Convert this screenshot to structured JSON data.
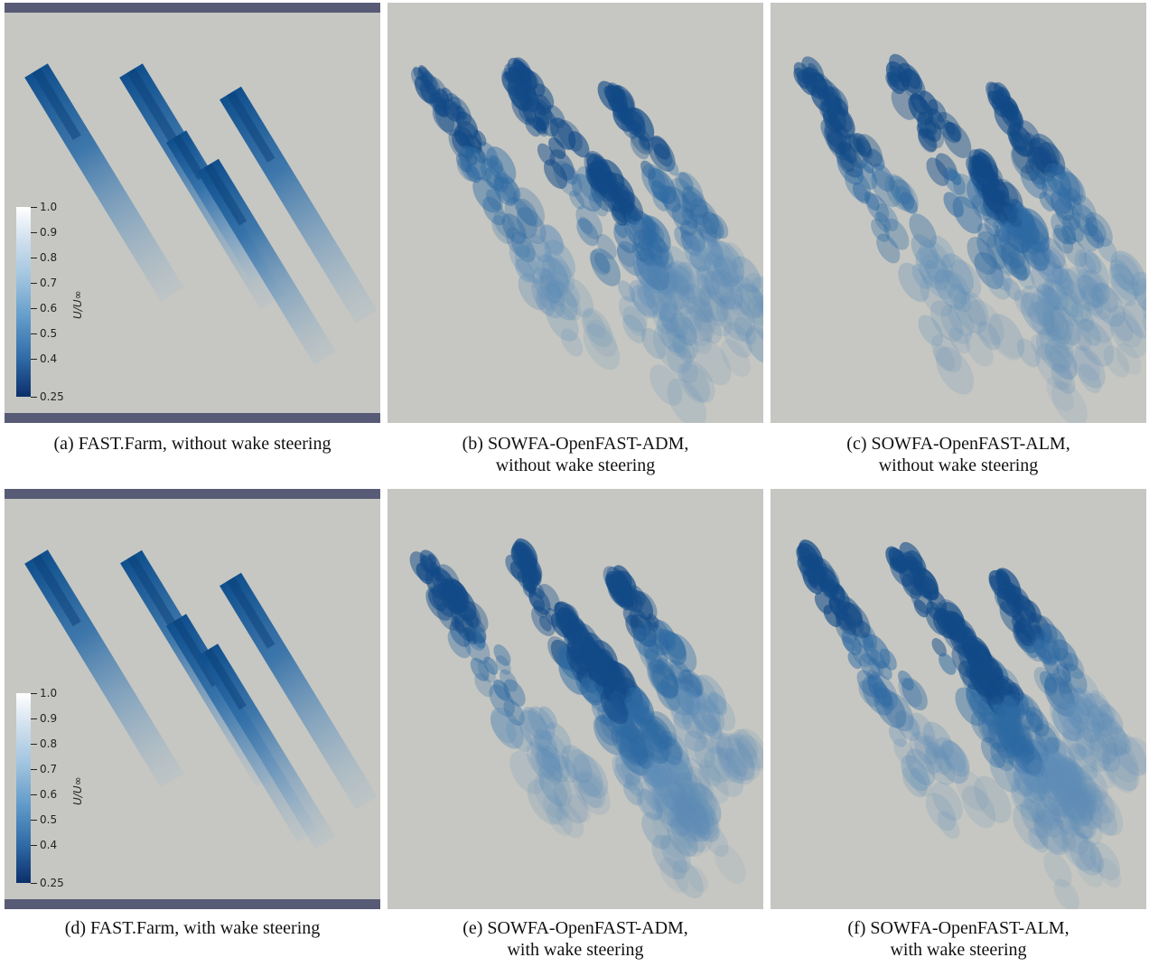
{
  "panels": [
    {
      "id": "a",
      "caption_line1": "(a) FAST.Farm, without wake steering",
      "caption_line2": "",
      "style": "fastfarm",
      "steering": false
    },
    {
      "id": "b",
      "caption_line1": "(b) SOWFA-OpenFAST-ADM,",
      "caption_line2": "without wake steering",
      "style": "sowfa",
      "steering": false
    },
    {
      "id": "c",
      "caption_line1": "(c) SOWFA-OpenFAST-ALM,",
      "caption_line2": "without wake steering",
      "style": "sowfa",
      "steering": false
    },
    {
      "id": "d",
      "caption_line1": "(d) FAST.Farm, with wake steering",
      "caption_line2": "",
      "style": "fastfarm",
      "steering": true
    },
    {
      "id": "e",
      "caption_line1": "(e) SOWFA-OpenFAST-ADM,",
      "caption_line2": "with wake steering",
      "style": "sowfa",
      "steering": true
    },
    {
      "id": "f",
      "caption_line1": "(f) SOWFA-OpenFAST-ALM,",
      "caption_line2": "with wake steering",
      "style": "sowfa",
      "steering": true
    }
  ],
  "colorbar": {
    "label": "U/U∞",
    "ticks": [
      "1.0",
      "0.9",
      "0.8",
      "0.7",
      "0.6",
      "0.5",
      "0.4",
      "0.25"
    ],
    "colors": {
      "high": "#ffffff",
      "low": "#0b2f6b",
      "background": "#c6c7c2",
      "bar": "#575b76"
    }
  }
}
